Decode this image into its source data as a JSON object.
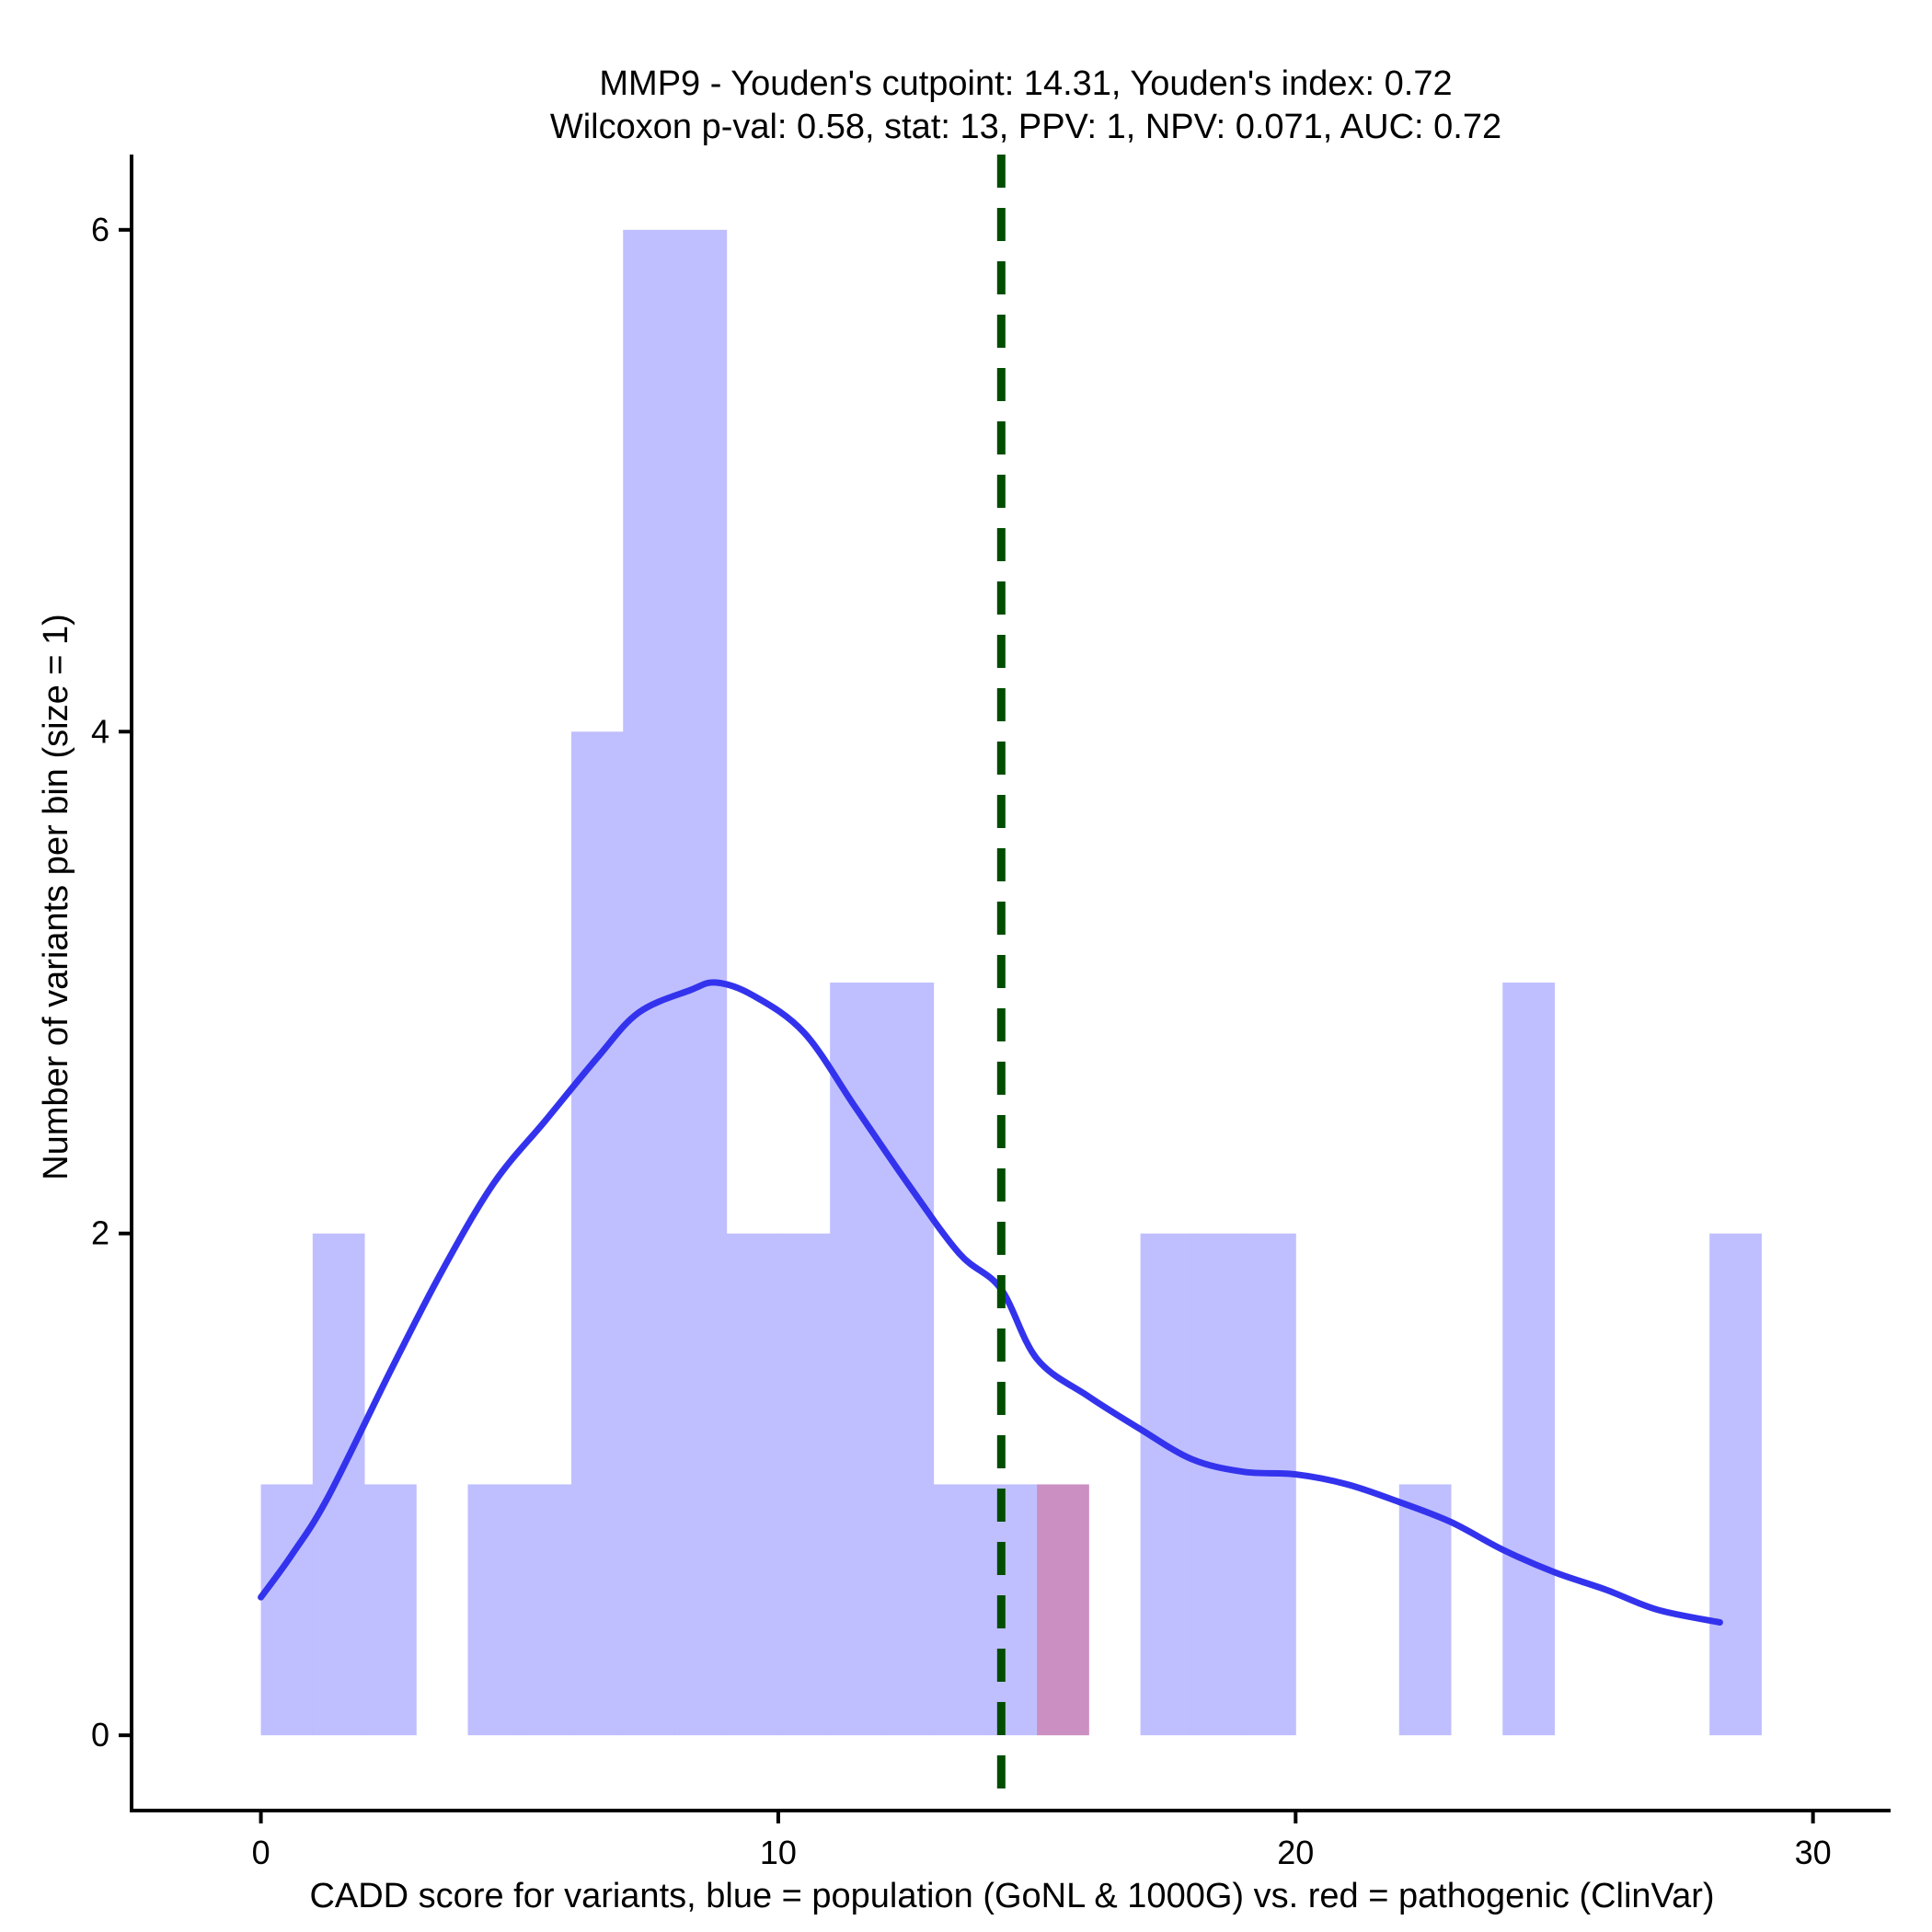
{
  "chart_data": {
    "type": "histogram",
    "title_line1": "MMP9 - Youden's cutpoint: 14.31, Youden's index: 0.72",
    "title_line2": "Wilcoxon p-val: 0.58, stat: 13, PPV: 1, NPV: 0.071, AUC: 0.72",
    "xlabel": "CADD score for variants, blue = population (GoNL & 1000G) vs. red = pathogenic (ClinVar)",
    "ylabel": "Number of variants per bin (size = 1)",
    "xlim": [
      -2.5,
      31.5
    ],
    "ylim": [
      -0.3,
      6.3
    ],
    "x_ticks": [
      0,
      10,
      20,
      30
    ],
    "y_ticks": [
      0,
      2,
      4,
      6
    ],
    "bin_size": 1,
    "colors": {
      "population": "#bfbfff",
      "pathogenic": "#cc8fc2",
      "density_line": "#3333ee",
      "cutpoint_line": "#004d00"
    },
    "series": [
      {
        "name": "population (GoNL & 1000G)",
        "bins": [
          {
            "x0": 0,
            "x1": 1,
            "count": 1
          },
          {
            "x0": 1,
            "x1": 2,
            "count": 2
          },
          {
            "x0": 2,
            "x1": 3,
            "count": 1
          },
          {
            "x0": 4,
            "x1": 5,
            "count": 1
          },
          {
            "x0": 5,
            "x1": 6,
            "count": 1
          },
          {
            "x0": 6,
            "x1": 7,
            "count": 4
          },
          {
            "x0": 7,
            "x1": 8,
            "count": 6
          },
          {
            "x0": 8,
            "x1": 9,
            "count": 6
          },
          {
            "x0": 9,
            "x1": 10,
            "count": 2
          },
          {
            "x0": 10,
            "x1": 11,
            "count": 2
          },
          {
            "x0": 11,
            "x1": 12,
            "count": 3
          },
          {
            "x0": 12,
            "x1": 13,
            "count": 3
          },
          {
            "x0": 13,
            "x1": 14,
            "count": 1
          },
          {
            "x0": 14,
            "x1": 15,
            "count": 1
          },
          {
            "x0": 17,
            "x1": 18,
            "count": 2
          },
          {
            "x0": 18,
            "x1": 19,
            "count": 2
          },
          {
            "x0": 19,
            "x1": 20,
            "count": 2
          },
          {
            "x0": 22,
            "x1": 23,
            "count": 1
          },
          {
            "x0": 24,
            "x1": 25,
            "count": 3
          },
          {
            "x0": 28,
            "x1": 29,
            "count": 2
          }
        ]
      },
      {
        "name": "pathogenic (ClinVar)",
        "bins": [
          {
            "x0": 15,
            "x1": 16,
            "count": 1
          }
        ]
      }
    ],
    "density": {
      "name": "population density",
      "x": [
        0,
        0.6,
        1.3,
        2.5,
        3.5,
        4.5,
        5.5,
        6.5,
        7.3,
        8.3,
        8.8,
        9.5,
        10.5,
        11.5,
        12.5,
        13.5,
        14.3,
        15.0,
        16.0,
        17.0,
        18.0,
        19.0,
        20.0,
        21.0,
        22.0,
        23.0,
        24.0,
        25.0,
        26.0,
        27.0,
        28.2
      ],
      "y": [
        0.55,
        0.72,
        0.95,
        1.45,
        1.85,
        2.2,
        2.45,
        2.7,
        2.88,
        2.97,
        3.0,
        2.95,
        2.8,
        2.5,
        2.2,
        1.92,
        1.78,
        1.5,
        1.35,
        1.22,
        1.1,
        1.05,
        1.04,
        1.0,
        0.93,
        0.85,
        0.74,
        0.65,
        0.58,
        0.5,
        0.45
      ]
    },
    "cutpoint": 14.31
  }
}
